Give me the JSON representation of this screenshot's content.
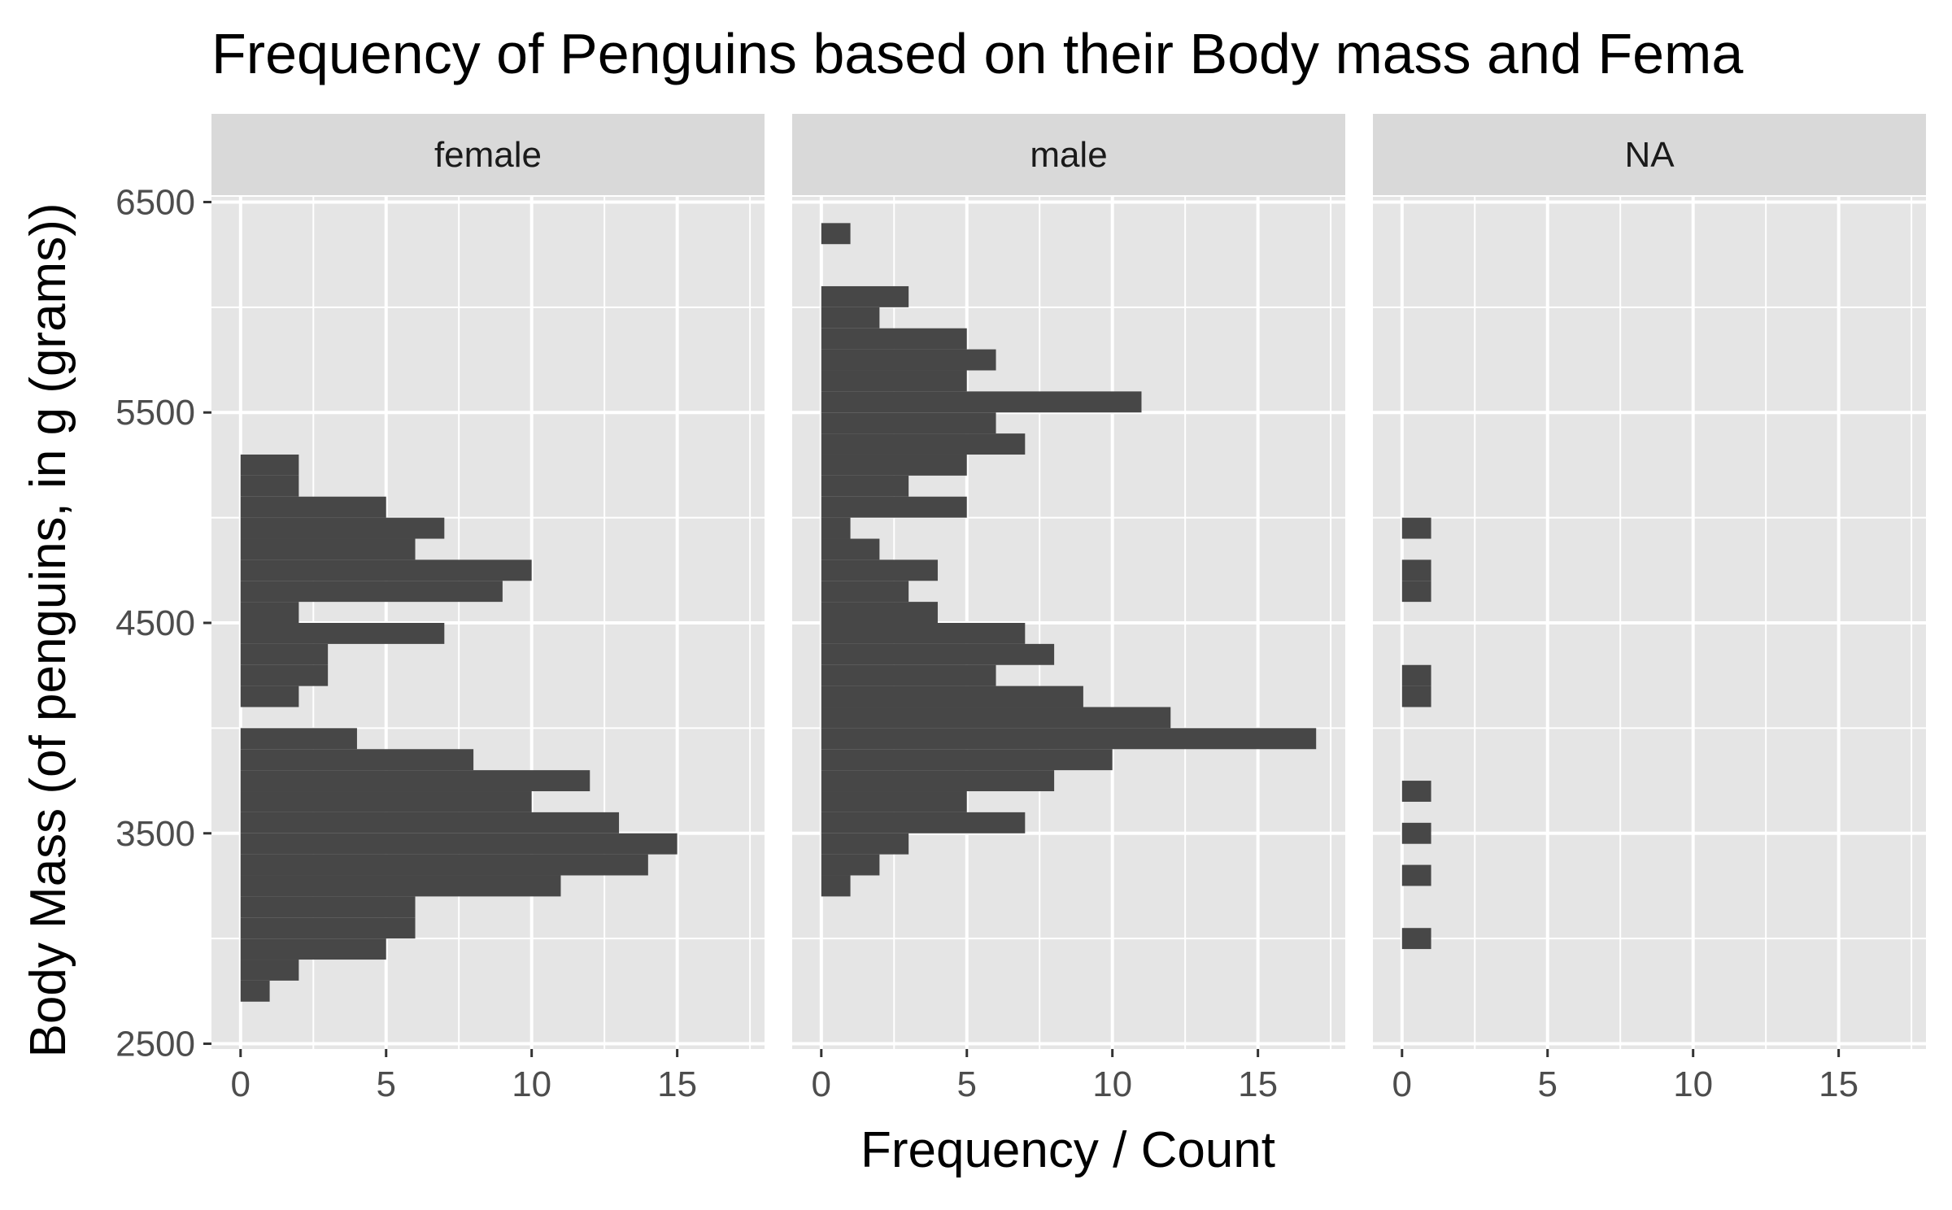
{
  "chart_data": {
    "type": "bar",
    "orientation": "horizontal",
    "title": "Frequency of Penguins based on their Body mass and Fema",
    "xlabel": "Frequency / Count",
    "ylabel": "Body Mass (of penguins, in g (grams))",
    "xlim": [
      -1,
      18
    ],
    "ylim": [
      2475,
      6525
    ],
    "x_ticks": [
      "0",
      "5",
      "10",
      "15"
    ],
    "y_ticks": [
      "2500",
      "3500",
      "4500",
      "5500",
      "6500"
    ],
    "bin_width": 100,
    "grid": true,
    "panel_background": "#e5e5e5",
    "strip_background": "#d9d9d9",
    "bar_color": "#474747",
    "facets": [
      {
        "name": "female",
        "bins": [
          {
            "y": 2750,
            "count": 1
          },
          {
            "y": 2850,
            "count": 2
          },
          {
            "y": 2950,
            "count": 5
          },
          {
            "y": 3050,
            "count": 6
          },
          {
            "y": 3150,
            "count": 6
          },
          {
            "y": 3250,
            "count": 11
          },
          {
            "y": 3350,
            "count": 14
          },
          {
            "y": 3450,
            "count": 15
          },
          {
            "y": 3550,
            "count": 13
          },
          {
            "y": 3650,
            "count": 10
          },
          {
            "y": 3750,
            "count": 12
          },
          {
            "y": 3850,
            "count": 8
          },
          {
            "y": 3950,
            "count": 4
          },
          {
            "y": 4050,
            "count": 0
          },
          {
            "y": 4150,
            "count": 2
          },
          {
            "y": 4250,
            "count": 3
          },
          {
            "y": 4350,
            "count": 3
          },
          {
            "y": 4450,
            "count": 7
          },
          {
            "y": 4550,
            "count": 2
          },
          {
            "y": 4650,
            "count": 9
          },
          {
            "y": 4750,
            "count": 10
          },
          {
            "y": 4850,
            "count": 6
          },
          {
            "y": 4950,
            "count": 7
          },
          {
            "y": 5050,
            "count": 5
          },
          {
            "y": 5150,
            "count": 2
          },
          {
            "y": 5250,
            "count": 2
          }
        ]
      },
      {
        "name": "male",
        "bins": [
          {
            "y": 3250,
            "count": 1
          },
          {
            "y": 3350,
            "count": 2
          },
          {
            "y": 3450,
            "count": 3
          },
          {
            "y": 3550,
            "count": 7
          },
          {
            "y": 3650,
            "count": 5
          },
          {
            "y": 3750,
            "count": 8
          },
          {
            "y": 3850,
            "count": 10
          },
          {
            "y": 3950,
            "count": 17
          },
          {
            "y": 4050,
            "count": 12
          },
          {
            "y": 4150,
            "count": 9
          },
          {
            "y": 4250,
            "count": 6
          },
          {
            "y": 4350,
            "count": 8
          },
          {
            "y": 4450,
            "count": 7
          },
          {
            "y": 4550,
            "count": 4
          },
          {
            "y": 4650,
            "count": 3
          },
          {
            "y": 4750,
            "count": 4
          },
          {
            "y": 4850,
            "count": 2
          },
          {
            "y": 4950,
            "count": 1
          },
          {
            "y": 5050,
            "count": 5
          },
          {
            "y": 5150,
            "count": 3
          },
          {
            "y": 5250,
            "count": 5
          },
          {
            "y": 5350,
            "count": 7
          },
          {
            "y": 5450,
            "count": 6
          },
          {
            "y": 5550,
            "count": 11
          },
          {
            "y": 5650,
            "count": 5
          },
          {
            "y": 5750,
            "count": 6
          },
          {
            "y": 5850,
            "count": 5
          },
          {
            "y": 5950,
            "count": 2
          },
          {
            "y": 6050,
            "count": 3
          },
          {
            "y": 6350,
            "count": 1
          }
        ]
      },
      {
        "name": "NA",
        "bins": [
          {
            "y": 3000,
            "count": 1
          },
          {
            "y": 3300,
            "count": 1
          },
          {
            "y": 3500,
            "count": 1
          },
          {
            "y": 3700,
            "count": 1
          },
          {
            "y": 4150,
            "count": 1
          },
          {
            "y": 4250,
            "count": 1
          },
          {
            "y": 4650,
            "count": 1
          },
          {
            "y": 4750,
            "count": 1
          },
          {
            "y": 4950,
            "count": 1
          }
        ]
      }
    ]
  }
}
